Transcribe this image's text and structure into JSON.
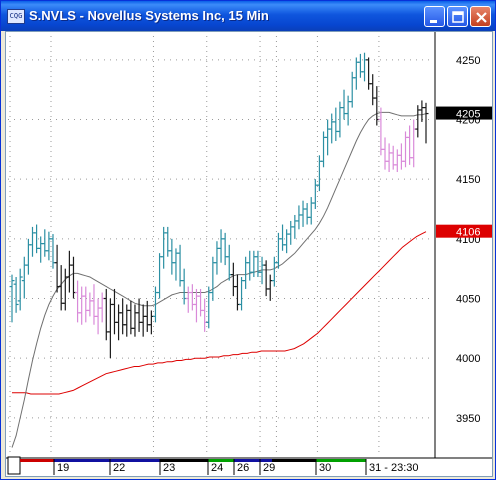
{
  "window": {
    "title": "S.NVLS - Novellus Systems Inc, 15 Min",
    "icon": "chart-app-icon"
  },
  "chart_data": {
    "type": "candlestick",
    "symbol": "S.NVLS",
    "interval": "15 Min",
    "ylim": [
      3918,
      4270
    ],
    "y_ticks": [
      "4250",
      "4200",
      "4150",
      "4100",
      "4050",
      "4000",
      "3950"
    ],
    "x_ticks": [
      "19",
      "22",
      "23",
      "24",
      "26",
      "29",
      "30",
      "31 - 23:30"
    ],
    "last_price_label": "4205",
    "ma_label": "4106",
    "colors": {
      "up": "#2b8fa3",
      "down": "#1a1a1a",
      "weak": "#d98ad9",
      "ma_short": "#707070",
      "ma_long": "#dd0000",
      "price_tag": "#000000",
      "ma_tag": "#dd0000"
    },
    "session_colors": [
      "#cc0000",
      "#1010a0",
      "#1010a0",
      "#000000",
      "#00a000",
      "#1010a0",
      "#000000",
      "#00a000"
    ],
    "bars": [
      {
        "o": 4060,
        "h": 4070,
        "l": 4030,
        "c": 4065,
        "k": "up"
      },
      {
        "o": 4062,
        "h": 4068,
        "l": 4038,
        "c": 4045,
        "k": "up"
      },
      {
        "o": 4048,
        "h": 4075,
        "l": 4040,
        "c": 4068,
        "k": "up"
      },
      {
        "o": 4065,
        "h": 4085,
        "l": 4050,
        "c": 4078,
        "k": "up"
      },
      {
        "o": 4078,
        "h": 4100,
        "l": 4070,
        "c": 4095,
        "k": "up"
      },
      {
        "o": 4095,
        "h": 4110,
        "l": 4085,
        "c": 4105,
        "k": "up"
      },
      {
        "o": 4105,
        "h": 4112,
        "l": 4088,
        "c": 4092,
        "k": "up"
      },
      {
        "o": 4092,
        "h": 4102,
        "l": 4080,
        "c": 4096,
        "k": "up"
      },
      {
        "o": 4096,
        "h": 4108,
        "l": 4085,
        "c": 4090,
        "k": "up"
      },
      {
        "o": 4090,
        "h": 4106,
        "l": 4082,
        "c": 4100,
        "k": "up"
      },
      {
        "o": 4100,
        "h": 4104,
        "l": 4075,
        "c": 4080,
        "k": "up"
      },
      {
        "o": 4080,
        "h": 4095,
        "l": 4055,
        "c": 4060,
        "k": "down"
      },
      {
        "o": 4060,
        "h": 4078,
        "l": 4040,
        "c": 4046,
        "k": "down"
      },
      {
        "o": 4046,
        "h": 4075,
        "l": 4040,
        "c": 4068,
        "k": "down"
      },
      {
        "o": 4068,
        "h": 4090,
        "l": 4055,
        "c": 4078,
        "k": "down"
      },
      {
        "o": 4078,
        "h": 4085,
        "l": 4050,
        "c": 4055,
        "k": "down"
      },
      {
        "o": 4055,
        "h": 4065,
        "l": 4030,
        "c": 4038,
        "k": "weak"
      },
      {
        "o": 4038,
        "h": 4060,
        "l": 4028,
        "c": 4052,
        "k": "weak"
      },
      {
        "o": 4052,
        "h": 4060,
        "l": 4030,
        "c": 4040,
        "k": "weak"
      },
      {
        "o": 4040,
        "h": 4055,
        "l": 4035,
        "c": 4048,
        "k": "weak"
      },
      {
        "o": 4048,
        "h": 4062,
        "l": 4028,
        "c": 4035,
        "k": "weak"
      },
      {
        "o": 4035,
        "h": 4050,
        "l": 4020,
        "c": 4042,
        "k": "weak"
      },
      {
        "o": 4042,
        "h": 4055,
        "l": 4030,
        "c": 4050,
        "k": "weak"
      },
      {
        "o": 4050,
        "h": 4058,
        "l": 4015,
        "c": 4022,
        "k": "down"
      },
      {
        "o": 4022,
        "h": 4050,
        "l": 4000,
        "c": 4045,
        "k": "down"
      },
      {
        "o": 4045,
        "h": 4058,
        "l": 4020,
        "c": 4030,
        "k": "down"
      },
      {
        "o": 4030,
        "h": 4045,
        "l": 4015,
        "c": 4038,
        "k": "down"
      },
      {
        "o": 4038,
        "h": 4050,
        "l": 4020,
        "c": 4028,
        "k": "down"
      },
      {
        "o": 4028,
        "h": 4045,
        "l": 4018,
        "c": 4040,
        "k": "down"
      },
      {
        "o": 4040,
        "h": 4048,
        "l": 4020,
        "c": 4025,
        "k": "down"
      },
      {
        "o": 4025,
        "h": 4045,
        "l": 4018,
        "c": 4038,
        "k": "down"
      },
      {
        "o": 4038,
        "h": 4050,
        "l": 4022,
        "c": 4030,
        "k": "down"
      },
      {
        "o": 4030,
        "h": 4045,
        "l": 4018,
        "c": 4035,
        "k": "down"
      },
      {
        "o": 4035,
        "h": 4048,
        "l": 4022,
        "c": 4028,
        "k": "down"
      },
      {
        "o": 4028,
        "h": 4040,
        "l": 4020,
        "c": 4035,
        "k": "down"
      },
      {
        "o": 4035,
        "h": 4060,
        "l": 4030,
        "c": 4055,
        "k": "up"
      },
      {
        "o": 4055,
        "h": 4088,
        "l": 4050,
        "c": 4085,
        "k": "up"
      },
      {
        "o": 4085,
        "h": 4110,
        "l": 4075,
        "c": 4105,
        "k": "up"
      },
      {
        "o": 4105,
        "h": 4110,
        "l": 4085,
        "c": 4090,
        "k": "up"
      },
      {
        "o": 4090,
        "h": 4100,
        "l": 4070,
        "c": 4080,
        "k": "up"
      },
      {
        "o": 4080,
        "h": 4092,
        "l": 4065,
        "c": 4088,
        "k": "up"
      },
      {
        "o": 4088,
        "h": 4095,
        "l": 4060,
        "c": 4065,
        "k": "up"
      },
      {
        "o": 4065,
        "h": 4075,
        "l": 4045,
        "c": 4050,
        "k": "up"
      },
      {
        "o": 4050,
        "h": 4060,
        "l": 4038,
        "c": 4055,
        "k": "weak"
      },
      {
        "o": 4055,
        "h": 4062,
        "l": 4040,
        "c": 4045,
        "k": "weak"
      },
      {
        "o": 4045,
        "h": 4058,
        "l": 4030,
        "c": 4052,
        "k": "weak"
      },
      {
        "o": 4052,
        "h": 4058,
        "l": 4035,
        "c": 4040,
        "k": "weak"
      },
      {
        "o": 4040,
        "h": 4050,
        "l": 4022,
        "c": 4030,
        "k": "weak"
      },
      {
        "o": 4030,
        "h": 4060,
        "l": 4025,
        "c": 4055,
        "k": "up"
      },
      {
        "o": 4055,
        "h": 4085,
        "l": 4048,
        "c": 4080,
        "k": "up"
      },
      {
        "o": 4080,
        "h": 4098,
        "l": 4070,
        "c": 4092,
        "k": "up"
      },
      {
        "o": 4092,
        "h": 4108,
        "l": 4080,
        "c": 4100,
        "k": "up"
      },
      {
        "o": 4100,
        "h": 4105,
        "l": 4078,
        "c": 4085,
        "k": "up"
      },
      {
        "o": 4085,
        "h": 4095,
        "l": 4065,
        "c": 4070,
        "k": "up"
      },
      {
        "o": 4070,
        "h": 4080,
        "l": 4052,
        "c": 4060,
        "k": "down"
      },
      {
        "o": 4060,
        "h": 4070,
        "l": 4040,
        "c": 4045,
        "k": "down"
      },
      {
        "o": 4045,
        "h": 4068,
        "l": 4040,
        "c": 4065,
        "k": "up"
      },
      {
        "o": 4065,
        "h": 4085,
        "l": 4058,
        "c": 4080,
        "k": "up"
      },
      {
        "o": 4080,
        "h": 4090,
        "l": 4065,
        "c": 4072,
        "k": "up"
      },
      {
        "o": 4072,
        "h": 4090,
        "l": 4068,
        "c": 4085,
        "k": "up"
      },
      {
        "o": 4085,
        "h": 4090,
        "l": 4068,
        "c": 4072,
        "k": "up"
      },
      {
        "o": 4072,
        "h": 4085,
        "l": 4062,
        "c": 4078,
        "k": "up"
      },
      {
        "o": 4078,
        "h": 4082,
        "l": 4052,
        "c": 4058,
        "k": "down"
      },
      {
        "o": 4058,
        "h": 4070,
        "l": 4048,
        "c": 4065,
        "k": "down"
      },
      {
        "o": 4065,
        "h": 4085,
        "l": 4060,
        "c": 4080,
        "k": "up"
      },
      {
        "o": 4080,
        "h": 4105,
        "l": 4075,
        "c": 4100,
        "k": "up"
      },
      {
        "o": 4100,
        "h": 4112,
        "l": 4090,
        "c": 4095,
        "k": "up"
      },
      {
        "o": 4095,
        "h": 4108,
        "l": 4088,
        "c": 4104,
        "k": "up"
      },
      {
        "o": 4104,
        "h": 4115,
        "l": 4095,
        "c": 4110,
        "k": "up"
      },
      {
        "o": 4110,
        "h": 4120,
        "l": 4100,
        "c": 4115,
        "k": "up"
      },
      {
        "o": 4115,
        "h": 4128,
        "l": 4108,
        "c": 4120,
        "k": "up"
      },
      {
        "o": 4120,
        "h": 4132,
        "l": 4110,
        "c": 4125,
        "k": "up"
      },
      {
        "o": 4125,
        "h": 4130,
        "l": 4112,
        "c": 4118,
        "k": "up"
      },
      {
        "o": 4118,
        "h": 4135,
        "l": 4112,
        "c": 4130,
        "k": "up"
      },
      {
        "o": 4130,
        "h": 4150,
        "l": 4125,
        "c": 4145,
        "k": "up"
      },
      {
        "o": 4145,
        "h": 4170,
        "l": 4140,
        "c": 4165,
        "k": "up"
      },
      {
        "o": 4165,
        "h": 4190,
        "l": 4160,
        "c": 4185,
        "k": "up"
      },
      {
        "o": 4185,
        "h": 4200,
        "l": 4170,
        "c": 4192,
        "k": "up"
      },
      {
        "o": 4192,
        "h": 4205,
        "l": 4180,
        "c": 4198,
        "k": "up"
      },
      {
        "o": 4198,
        "h": 4210,
        "l": 4182,
        "c": 4190,
        "k": "up"
      },
      {
        "o": 4190,
        "h": 4215,
        "l": 4185,
        "c": 4210,
        "k": "up"
      },
      {
        "o": 4210,
        "h": 4225,
        "l": 4200,
        "c": 4205,
        "k": "up"
      },
      {
        "o": 4205,
        "h": 4220,
        "l": 4195,
        "c": 4215,
        "k": "up"
      },
      {
        "o": 4215,
        "h": 4240,
        "l": 4210,
        "c": 4235,
        "k": "up"
      },
      {
        "o": 4235,
        "h": 4252,
        "l": 4225,
        "c": 4248,
        "k": "up"
      },
      {
        "o": 4248,
        "h": 4255,
        "l": 4235,
        "c": 4240,
        "k": "up"
      },
      {
        "o": 4240,
        "h": 4256,
        "l": 4232,
        "c": 4250,
        "k": "up"
      },
      {
        "o": 4250,
        "h": 4252,
        "l": 4225,
        "c": 4230,
        "k": "down"
      },
      {
        "o": 4230,
        "h": 4238,
        "l": 4212,
        "c": 4218,
        "k": "down"
      },
      {
        "o": 4218,
        "h": 4228,
        "l": 4195,
        "c": 4200,
        "k": "down"
      },
      {
        "o": 4200,
        "h": 4210,
        "l": 4170,
        "c": 4175,
        "k": "weak"
      },
      {
        "o": 4175,
        "h": 4185,
        "l": 4158,
        "c": 4165,
        "k": "weak"
      },
      {
        "o": 4165,
        "h": 4180,
        "l": 4156,
        "c": 4172,
        "k": "weak"
      },
      {
        "o": 4172,
        "h": 4178,
        "l": 4158,
        "c": 4162,
        "k": "weak"
      },
      {
        "o": 4162,
        "h": 4175,
        "l": 4156,
        "c": 4170,
        "k": "weak"
      },
      {
        "o": 4170,
        "h": 4180,
        "l": 4158,
        "c": 4165,
        "k": "weak"
      },
      {
        "o": 4165,
        "h": 4190,
        "l": 4160,
        "c": 4185,
        "k": "weak"
      },
      {
        "o": 4185,
        "h": 4195,
        "l": 4162,
        "c": 4168,
        "k": "weak"
      },
      {
        "o": 4168,
        "h": 4200,
        "l": 4160,
        "c": 4192,
        "k": "weak"
      },
      {
        "o": 4192,
        "h": 4212,
        "l": 4185,
        "c": 4208,
        "k": "down"
      },
      {
        "o": 4208,
        "h": 4216,
        "l": 4198,
        "c": 4210,
        "k": "down"
      },
      {
        "o": 4210,
        "h": 4214,
        "l": 4180,
        "c": 4205,
        "k": "down"
      }
    ],
    "ma_short": [
      3925,
      3935,
      3950,
      3965,
      3982,
      3998,
      4012,
      4025,
      4036,
      4045,
      4052,
      4058,
      4062,
      4066,
      4069,
      4071,
      4071,
      4070,
      4069,
      4068,
      4066,
      4064,
      4062,
      4060,
      4058,
      4056,
      4054,
      4052,
      4050,
      4048,
      4046,
      4045,
      4044,
      4044,
      4044,
      4045,
      4047,
      4049,
      4051,
      4053,
      4054,
      4055,
      4055,
      4055,
      4055,
      4055,
      4055,
      4055,
      4056,
      4058,
      4060,
      4063,
      4065,
      4067,
      4069,
      4070,
      4070,
      4070,
      4071,
      4072,
      4073,
      4074,
      4074,
      4074,
      4075,
      4077,
      4079,
      4082,
      4085,
      4088,
      4092,
      4096,
      4100,
      4104,
      4108,
      4113,
      4119,
      4126,
      4134,
      4142,
      4150,
      4158,
      4166,
      4174,
      4182,
      4189,
      4195,
      4200,
      4203,
      4205,
      4206,
      4206,
      4206,
      4205,
      4204,
      4203,
      4203,
      4203,
      4203,
      4204,
      4204,
      4205
    ],
    "ma_long": [
      3971,
      3971,
      3971,
      3971,
      3970,
      3970,
      3970,
      3970,
      3970,
      3970,
      3970,
      3971,
      3972,
      3973,
      3975,
      3977,
      3979,
      3981,
      3983,
      3985,
      3987,
      3988,
      3989,
      3990,
      3991,
      3992,
      3993,
      3993,
      3994,
      3995,
      3995,
      3996,
      3996,
      3997,
      3997,
      3998,
      3998,
      3999,
      3999,
      4000,
      4000,
      4000,
      4001,
      4001,
      4001,
      4002,
      4002,
      4003,
      4003,
      4004,
      4004,
      4005,
      4005,
      4006,
      4006,
      4006,
      4006,
      4006,
      4006,
      4007,
      4008,
      4010,
      4012,
      4015,
      4018,
      4021,
      4025,
      4029,
      4033,
      4037,
      4041,
      4045,
      4049,
      4053,
      4057,
      4061,
      4065,
      4069,
      4073,
      4077,
      4081,
      4085,
      4089,
      4093,
      4096,
      4099,
      4102,
      4104,
      4106
    ]
  }
}
